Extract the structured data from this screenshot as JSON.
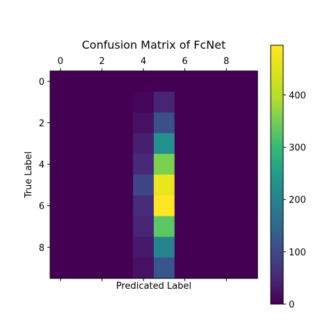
{
  "chart_data": {
    "type": "heatmap",
    "title": "Confusion Matrix of FcNet",
    "xlabel": "Predicated Label",
    "ylabel": "True Label",
    "x_ticks": [
      0,
      2,
      4,
      6,
      8
    ],
    "y_ticks": [
      0,
      2,
      4,
      6,
      8
    ],
    "x_tick_side": "top",
    "rows": 10,
    "cols": 10,
    "matrix": [
      [
        0,
        0,
        0,
        0,
        0,
        0,
        0,
        0,
        0,
        0
      ],
      [
        0,
        0,
        0,
        0,
        6,
        45,
        0,
        0,
        0,
        0
      ],
      [
        0,
        0,
        0,
        0,
        20,
        110,
        0,
        0,
        0,
        0
      ],
      [
        0,
        0,
        0,
        0,
        38,
        225,
        0,
        0,
        0,
        0
      ],
      [
        0,
        0,
        0,
        0,
        50,
        355,
        0,
        0,
        0,
        0
      ],
      [
        0,
        0,
        0,
        0,
        95,
        465,
        0,
        0,
        0,
        0
      ],
      [
        0,
        0,
        0,
        0,
        55,
        495,
        0,
        0,
        0,
        0
      ],
      [
        0,
        0,
        0,
        0,
        45,
        330,
        0,
        0,
        0,
        0
      ],
      [
        0,
        0,
        0,
        0,
        30,
        200,
        0,
        0,
        0,
        0
      ],
      [
        0,
        0,
        0,
        0,
        20,
        120,
        0,
        0,
        0,
        0
      ]
    ],
    "colormap": "viridis",
    "vmin": 0,
    "vmax": 495,
    "colorbar": {
      "ticks": [
        0,
        100,
        200,
        300,
        400
      ],
      "side": "right"
    },
    "grid": false
  }
}
